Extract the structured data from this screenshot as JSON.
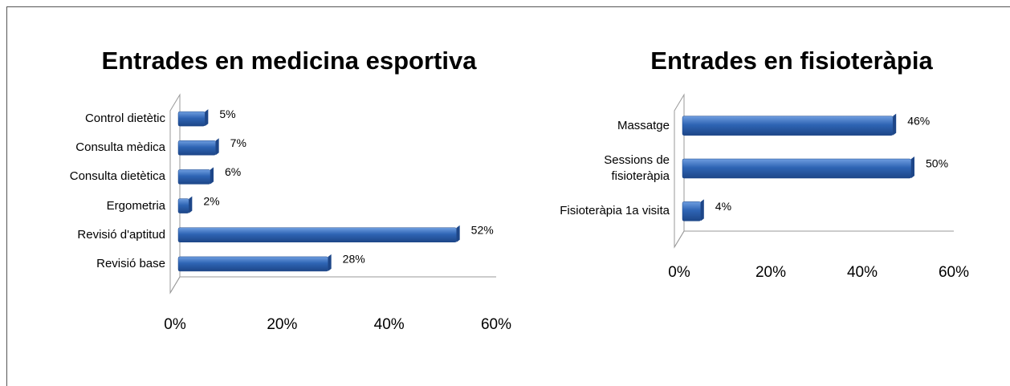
{
  "chart_data": [
    {
      "type": "bar",
      "orientation": "horizontal",
      "title": "Entrades en medicina esportiva",
      "categories": [
        "Control dietètic",
        "Consulta mèdica",
        "Consulta dietètica",
        "Ergometria",
        "Revisió d'aptitud",
        "Revisió base"
      ],
      "values": [
        5,
        7,
        6,
        2,
        52,
        28
      ],
      "value_labels": [
        "5%",
        "7%",
        "6%",
        "2%",
        "52%",
        "28%"
      ],
      "color": "#2e64b4",
      "xlim": [
        0,
        60
      ],
      "xticks": [
        {
          "value": 0,
          "label": "0%"
        },
        {
          "value": 20,
          "label": "20%"
        },
        {
          "value": 40,
          "label": "40%"
        },
        {
          "value": 60,
          "label": "60%"
        }
      ]
    },
    {
      "type": "bar",
      "orientation": "horizontal",
      "title": "Entrades en fisioteràpia",
      "categories": [
        "Massatge",
        "Sessions de fisioteràpia",
        "Fisioteràpia 1a visita"
      ],
      "values": [
        46,
        50,
        4
      ],
      "value_labels": [
        "46%",
        "50%",
        "4%"
      ],
      "color": "#2e64b4",
      "xlim": [
        0,
        60
      ],
      "xticks": [
        {
          "value": 0,
          "label": "0%"
        },
        {
          "value": 20,
          "label": "20%"
        },
        {
          "value": 40,
          "label": "40%"
        },
        {
          "value": 60,
          "label": "60%"
        }
      ]
    }
  ]
}
